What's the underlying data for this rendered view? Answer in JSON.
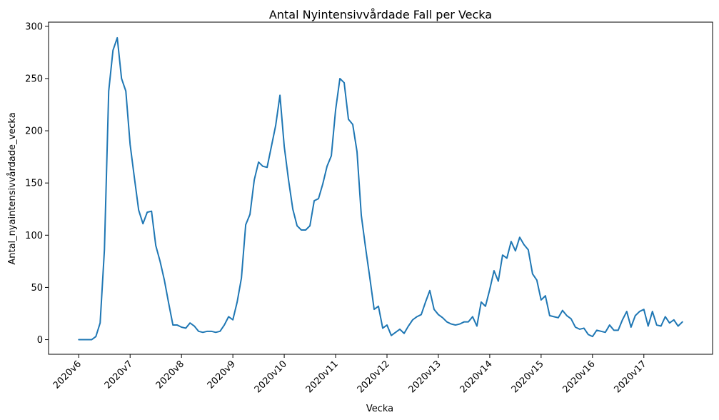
{
  "chart_data": {
    "type": "line",
    "title": "Antal Nyintensivvårdade Fall per Vecka",
    "xlabel": "Vecka",
    "ylabel": "Antal_nyaintensivvårdade_vecka",
    "x_ticks": [
      "2020v6",
      "2020v7",
      "2020v8",
      "2020v9",
      "2020v10",
      "2020v11",
      "2020v12",
      "2020v13",
      "2020v14",
      "2020v15",
      "2020v16",
      "2020v17"
    ],
    "points_per_week": 12,
    "ylim": [
      -14,
      304
    ],
    "y_ticks": [
      0,
      50,
      100,
      150,
      200,
      250,
      300
    ],
    "grid": false,
    "series": [
      {
        "color": "#1f77b4",
        "values": [
          0,
          0,
          0,
          0,
          3,
          16,
          86,
          238,
          277,
          289,
          250,
          238,
          187,
          155,
          124,
          111,
          122,
          123,
          90,
          75,
          57,
          35,
          14,
          14,
          12,
          11,
          16,
          13,
          8,
          7,
          8,
          8,
          7,
          8,
          14,
          22,
          19,
          36,
          59,
          110,
          120,
          153,
          170,
          166,
          165,
          185,
          205,
          234,
          185,
          153,
          125,
          109,
          105,
          105,
          109,
          133,
          135,
          149,
          166,
          176,
          220,
          250,
          246,
          211,
          206,
          180,
          119,
          88,
          59,
          29,
          32,
          11,
          14,
          4,
          7,
          10,
          6,
          13,
          19,
          22,
          24,
          36,
          47,
          29,
          24,
          21,
          17,
          15,
          14,
          15,
          17,
          17,
          22,
          13,
          36,
          32,
          48,
          66,
          56,
          81,
          78,
          94,
          85,
          98,
          91,
          86,
          63,
          57,
          38,
          42,
          23,
          22,
          21,
          28,
          23,
          20,
          12,
          10,
          11,
          5,
          3,
          9,
          8,
          7,
          14,
          9,
          9,
          19,
          27,
          12,
          23,
          27,
          29,
          13,
          27,
          14,
          13,
          22,
          16,
          19,
          13,
          17
        ]
      }
    ]
  }
}
